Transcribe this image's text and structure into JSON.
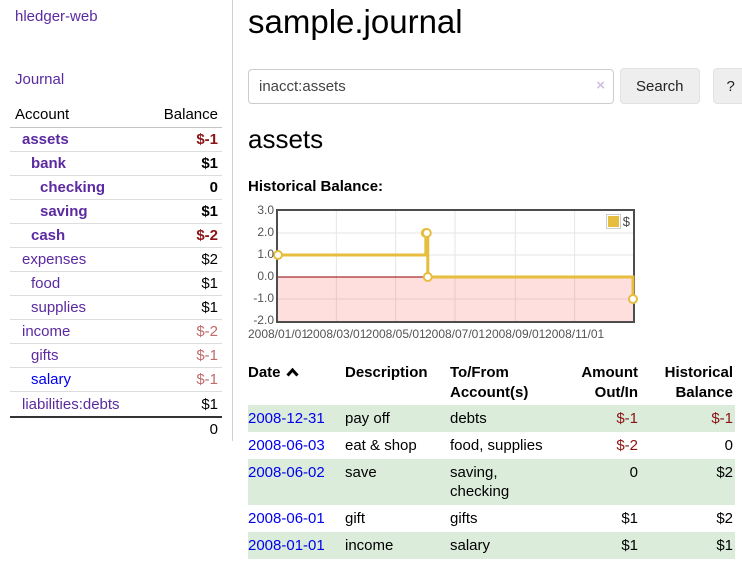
{
  "app": {
    "brand": "hledger-web",
    "nav": {
      "journal": "Journal"
    }
  },
  "sidebar": {
    "headers": {
      "account": "Account",
      "balance": "Balance"
    },
    "accounts": [
      {
        "name": "assets",
        "balance": "$-1"
      },
      {
        "name": "bank",
        "balance": "$1"
      },
      {
        "name": "checking",
        "balance": "0"
      },
      {
        "name": "saving",
        "balance": "$1"
      },
      {
        "name": "cash",
        "balance": "$-2"
      },
      {
        "name": "expenses",
        "balance": "$2"
      },
      {
        "name": "food",
        "balance": "$1"
      },
      {
        "name": "supplies",
        "balance": "$1"
      },
      {
        "name": "income",
        "balance": "$-2"
      },
      {
        "name": "gifts",
        "balance": "$-1"
      },
      {
        "name": "salary",
        "balance": "$-1"
      },
      {
        "name": "liabilities:debts",
        "balance": "$1"
      }
    ],
    "total": "0"
  },
  "header": {
    "title": "sample.journal"
  },
  "search": {
    "value": "inacct:assets",
    "clear_icon": "×",
    "button_label": "Search",
    "help_label": "?"
  },
  "account_page": {
    "heading": "assets"
  },
  "chart_data": {
    "type": "line",
    "step": true,
    "title": "Historical Balance:",
    "xlabel": "",
    "ylabel": "",
    "x_range": [
      "2008-01-01",
      "2008-12-31"
    ],
    "ylim": [
      -2,
      3
    ],
    "yticks": [
      "3.0",
      "2.0",
      "1.0",
      "0.0",
      "-1.0",
      "-2.0"
    ],
    "xticks": [
      {
        "t": "2008-01-01",
        "label": "2008/01/01"
      },
      {
        "t": "2008-03-01",
        "label": "2008/03/01"
      },
      {
        "t": "2008-05-01",
        "label": "2008/05/01"
      },
      {
        "t": "2008-07-01",
        "label": "2008/07/01"
      },
      {
        "t": "2008-09-01",
        "label": "2008/09/01"
      },
      {
        "t": "2008-11-01",
        "label": "2008/11/01"
      }
    ],
    "series": [
      {
        "name": "$",
        "color": "#e7bd3e",
        "points": [
          [
            "2008-01-01",
            1
          ],
          [
            "2008-06-01",
            2
          ],
          [
            "2008-06-02",
            2
          ],
          [
            "2008-06-03",
            0
          ],
          [
            "2008-12-31",
            -1
          ]
        ]
      }
    ],
    "legend_position": "top-right",
    "grid": true,
    "negative_region_fill": "rgba(255,0,0,0.13)",
    "zero_line_color": "#8b0000"
  },
  "register": {
    "headers": {
      "date": "Date",
      "sort_icon": "chevron-up",
      "description": "Description",
      "accounts": "To/From Account(s)",
      "amount": "Amount Out/In",
      "balance": "Historical Balance"
    },
    "rows": [
      {
        "date": "2008-12-31",
        "description": "pay off",
        "accounts": "debts",
        "amount": "$-1",
        "balance": "$-1"
      },
      {
        "date": "2008-06-03",
        "description": "eat & shop",
        "accounts": "food, supplies",
        "amount": "$-2",
        "balance": "0"
      },
      {
        "date": "2008-06-02",
        "description": "save",
        "accounts": "saving, checking",
        "amount": "0",
        "balance": "$2"
      },
      {
        "date": "2008-06-01",
        "description": "gift",
        "accounts": "gifts",
        "amount": "$1",
        "balance": "$2"
      },
      {
        "date": "2008-01-01",
        "description": "income",
        "accounts": "salary",
        "amount": "$1",
        "balance": "$1"
      }
    ]
  }
}
